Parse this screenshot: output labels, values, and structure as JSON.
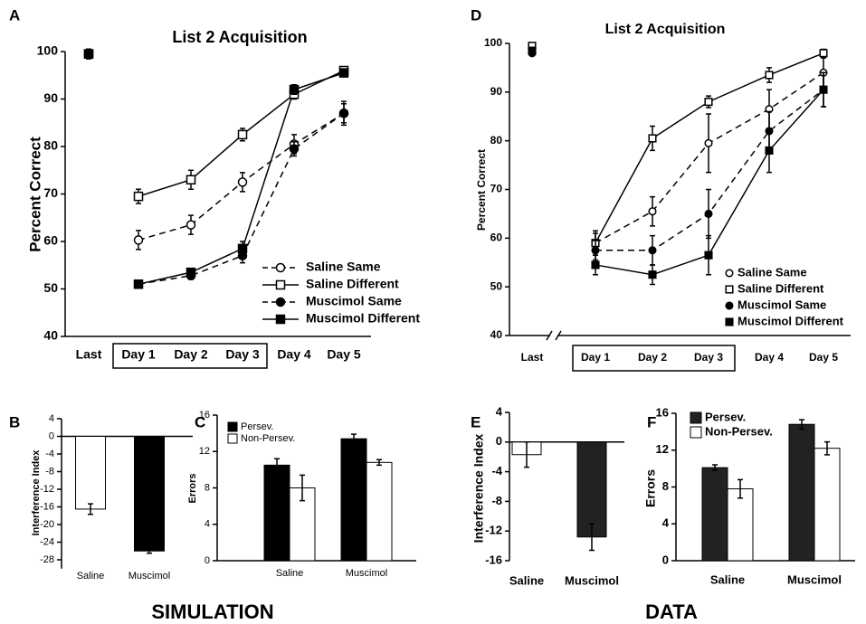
{
  "chart_data": [
    {
      "type": "line",
      "panel": "A",
      "title": "List 2 Acquisition",
      "ylabel": "Percent Correct",
      "categories": [
        "Last",
        "Day 1",
        "Day 2",
        "Day 3",
        "Day 4",
        "Day 5"
      ],
      "connect_first": false,
      "axis_break": false,
      "ylim": [
        40,
        100
      ],
      "yticks": [
        40,
        50,
        60,
        70,
        80,
        90,
        100
      ],
      "legend": "lower right",
      "series": [
        {
          "name": "Saline Same",
          "color": "#ffffff",
          "marker": "circle",
          "dashed": true,
          "values": [
            99.5,
            60.3,
            63.5,
            72.5,
            80.5,
            87
          ],
          "errors": [
            1,
            2,
            2,
            2,
            2,
            2
          ]
        },
        {
          "name": "Saline Different",
          "color": "#ffffff",
          "marker": "square",
          "dashed": false,
          "values": [
            99.5,
            69.5,
            73,
            82.5,
            91,
            96
          ],
          "errors": [
            1,
            1.5,
            2,
            1.3,
            1,
            0.7
          ]
        },
        {
          "name": "Muscimol Same",
          "color": "#000000",
          "marker": "circle",
          "dashed": true,
          "values": [
            99.5,
            51,
            52.8,
            57,
            79.5,
            87
          ],
          "errors": [
            1,
            0.7,
            0.8,
            1.5,
            1.5,
            2.5
          ]
        },
        {
          "name": "Muscimol Different",
          "color": "#000000",
          "marker": "square",
          "dashed": false,
          "values": [
            99.5,
            51,
            53.5,
            58.5,
            92,
            95.5
          ],
          "errors": [
            1,
            0.7,
            0.8,
            1.5,
            1,
            0.7
          ]
        }
      ]
    },
    {
      "type": "bar",
      "panel": "B",
      "ylabel": "Interference Index",
      "categories": [
        "Saline",
        "Muscimol"
      ],
      "values": [
        -16.5,
        -26
      ],
      "errors": [
        1.2,
        0.5
      ],
      "colors": [
        "#ffffff",
        "#000000"
      ],
      "ylim": [
        -30,
        4
      ],
      "yticks": [
        4,
        0,
        -4,
        -8,
        -12,
        -16,
        -20,
        -24,
        -28
      ]
    },
    {
      "type": "bar",
      "panel": "C",
      "ylabel": "Errors",
      "categories": [
        "Saline",
        "Muscimol"
      ],
      "legend": "upper left",
      "ylim": [
        0,
        16
      ],
      "yticks": [
        0,
        4,
        8,
        12,
        16
      ],
      "series": [
        {
          "name": "Persev.",
          "color": "#000000",
          "values": [
            10.5,
            13.4
          ],
          "errors": [
            0.7,
            0.5
          ]
        },
        {
          "name": "Non-Persev.",
          "color": "#ffffff",
          "values": [
            8,
            10.8
          ],
          "errors": [
            1.4,
            0.3
          ]
        }
      ]
    },
    {
      "type": "line",
      "panel": "D",
      "title": "List 2 Acquisition",
      "ylabel": "Percent Correct",
      "categories": [
        "Last",
        "Day 1",
        "Day 2",
        "Day 3",
        "Day 4",
        "Day 5"
      ],
      "connect_first": false,
      "axis_break": true,
      "ylim": [
        40,
        100
      ],
      "yticks": [
        40,
        50,
        60,
        70,
        80,
        90,
        100
      ],
      "legend": "lower right",
      "series": [
        {
          "name": "Saline Same",
          "color": "#ffffff",
          "marker": "circle",
          "dashed": true,
          "values": [
            99,
            59,
            65.5,
            79.5,
            86.5,
            94
          ],
          "errors": [
            0.5,
            2.5,
            3,
            6,
            4,
            3
          ]
        },
        {
          "name": "Saline Different",
          "color": "#ffffff",
          "marker": "square",
          "dashed": false,
          "values": [
            99.5,
            59,
            80.5,
            88,
            93.5,
            98
          ],
          "errors": [
            0.5,
            2,
            2.5,
            1.2,
            1.5,
            0.8
          ]
        },
        {
          "name": "Muscimol Same",
          "color": "#000000",
          "marker": "circle",
          "dashed": true,
          "values": [
            98,
            57.5,
            57.5,
            65,
            82,
            90.5
          ],
          "errors": [
            0.5,
            2,
            3,
            5,
            4,
            3.5
          ]
        },
        {
          "name": "Muscimol Different",
          "color": "#000000",
          "marker": "square",
          "dashed": false,
          "values": [
            98.5,
            54.5,
            52.5,
            56.5,
            78,
            90.5
          ],
          "errors": [
            0.5,
            2,
            2,
            4,
            4.5,
            3.5
          ]
        }
      ]
    },
    {
      "type": "bar",
      "panel": "E",
      "ylabel": "Interference Index",
      "categories": [
        "Saline",
        "Muscimol"
      ],
      "values": [
        -1.7,
        -12.8
      ],
      "errors": [
        1.7,
        1.8
      ],
      "colors": [
        "#ffffff",
        "#222222"
      ],
      "ylim": [
        -16,
        4
      ],
      "yticks": [
        4,
        0,
        -4,
        -8,
        -12,
        -16
      ]
    },
    {
      "type": "bar",
      "panel": "F",
      "ylabel": "Errors",
      "categories": [
        "Saline",
        "Muscimol"
      ],
      "legend": "upper left",
      "ylim": [
        0,
        16
      ],
      "yticks": [
        0,
        4,
        8,
        12,
        16
      ],
      "series": [
        {
          "name": "Persev.",
          "color": "#222222",
          "values": [
            10.1,
            14.8
          ],
          "errors": [
            0.3,
            0.5
          ]
        },
        {
          "name": "Non-Persev.",
          "color": "#ffffff",
          "values": [
            7.8,
            12.2
          ],
          "errors": [
            1,
            0.7
          ]
        }
      ]
    }
  ],
  "captions": [
    "SIMULATION",
    "DATA"
  ]
}
